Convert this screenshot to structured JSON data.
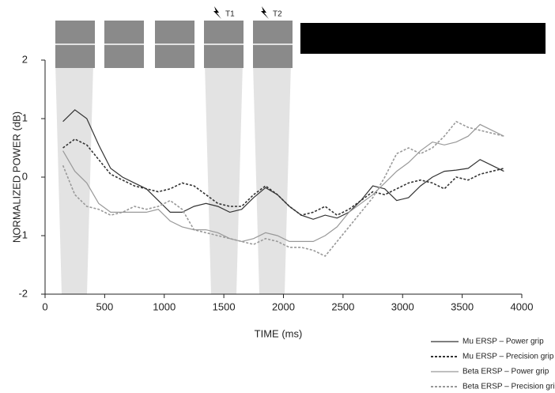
{
  "chart_data": {
    "type": "line",
    "xlabel": "TIME (ms)",
    "ylabel": "NORMALIZED  POWER (dB)",
    "annotations": [
      "T1",
      "T2"
    ],
    "x": [
      150,
      250,
      350,
      450,
      550,
      650,
      750,
      850,
      950,
      1050,
      1150,
      1250,
      1350,
      1450,
      1550,
      1650,
      1750,
      1850,
      1950,
      2050,
      2150,
      2250,
      2350,
      2450,
      2550,
      2650,
      2750,
      2850,
      2950,
      3050,
      3150,
      3250,
      3350,
      3450,
      3550,
      3650,
      3750,
      3850
    ],
    "series": [
      {
        "name": "Mu ERSP – Power grip",
        "color": "#333333",
        "dash": "solid",
        "values": [
          0.95,
          1.15,
          1.0,
          0.55,
          0.15,
          0.0,
          -0.1,
          -0.2,
          -0.4,
          -0.6,
          -0.6,
          -0.5,
          -0.45,
          -0.5,
          -0.6,
          -0.55,
          -0.35,
          -0.18,
          -0.3,
          -0.5,
          -0.65,
          -0.72,
          -0.65,
          -0.7,
          -0.6,
          -0.4,
          -0.15,
          -0.2,
          -0.4,
          -0.35,
          -0.15,
          0.0,
          0.1,
          0.12,
          0.15,
          0.3,
          0.2,
          0.1
        ]
      },
      {
        "name": "Mu ERSP – Precision grip",
        "color": "#333333",
        "dash": "dotted",
        "values": [
          0.5,
          0.65,
          0.55,
          0.3,
          0.05,
          -0.05,
          -0.15,
          -0.2,
          -0.25,
          -0.2,
          -0.1,
          -0.15,
          -0.3,
          -0.45,
          -0.5,
          -0.5,
          -0.3,
          -0.15,
          -0.3,
          -0.5,
          -0.65,
          -0.6,
          -0.5,
          -0.65,
          -0.55,
          -0.4,
          -0.25,
          -0.3,
          -0.2,
          -0.1,
          -0.05,
          -0.1,
          -0.2,
          0.0,
          -0.05,
          0.05,
          0.1,
          0.15
        ]
      },
      {
        "name": "Beta ERSP – Power grip",
        "color": "#999999",
        "dash": "solid",
        "values": [
          0.45,
          0.1,
          -0.1,
          -0.45,
          -0.6,
          -0.6,
          -0.6,
          -0.6,
          -0.55,
          -0.75,
          -0.85,
          -0.9,
          -0.9,
          -0.95,
          -1.05,
          -1.1,
          -1.05,
          -0.95,
          -1.0,
          -1.1,
          -1.1,
          -1.1,
          -1.0,
          -0.85,
          -0.6,
          -0.45,
          -0.3,
          -0.1,
          0.1,
          0.25,
          0.45,
          0.6,
          0.55,
          0.6,
          0.7,
          0.9,
          0.8,
          0.7
        ]
      },
      {
        "name": "Beta ERSP – Precision grip",
        "color": "#999999",
        "dash": "dotted",
        "values": [
          0.2,
          -0.3,
          -0.5,
          -0.55,
          -0.65,
          -0.6,
          -0.5,
          -0.55,
          -0.5,
          -0.4,
          -0.55,
          -0.9,
          -0.95,
          -1.0,
          -1.05,
          -1.1,
          -1.15,
          -1.05,
          -1.1,
          -1.2,
          -1.2,
          -1.25,
          -1.35,
          -1.1,
          -0.85,
          -0.6,
          -0.35,
          0.0,
          0.4,
          0.5,
          0.4,
          0.5,
          0.7,
          0.95,
          0.85,
          0.8,
          0.75,
          0.7
        ]
      }
    ],
    "xlim": [
      0,
      4000
    ],
    "xticks": [
      0,
      500,
      1000,
      1500,
      2000,
      2500,
      3000,
      3500,
      4000
    ],
    "ylim": [
      -2,
      2
    ],
    "yticks": [
      -2,
      -1,
      0,
      1,
      2
    ],
    "legend": "bottom-right"
  }
}
